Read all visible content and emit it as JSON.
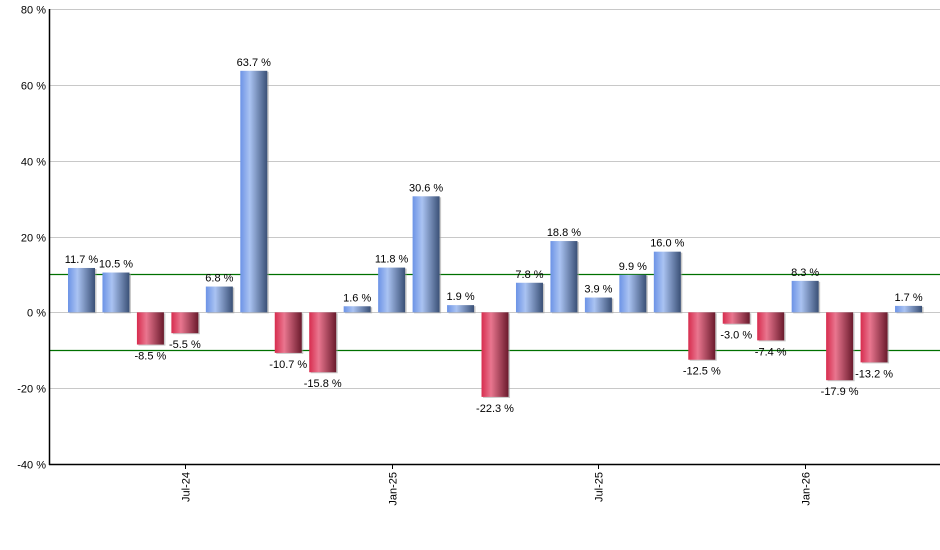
{
  "chart_data": {
    "type": "bar",
    "title": "",
    "xlabel": "",
    "ylabel": "",
    "ylim": [
      -40,
      80
    ],
    "y_ticks": [
      -40,
      -20,
      0,
      20,
      40,
      60,
      80
    ],
    "y_tick_labels": [
      "-40 %",
      "-20 %",
      "0 %",
      "20 %",
      "40 %",
      "60 %",
      "80 %"
    ],
    "grid": true,
    "reference_lines": [
      10,
      -10
    ],
    "reference_line_color": "#007000",
    "x_tick_labels": [
      {
        "label": "Jul-24",
        "bar_index": 3
      },
      {
        "label": "Jan-25",
        "bar_index": 9
      },
      {
        "label": "Jul-25",
        "bar_index": 15
      },
      {
        "label": "Jan-26",
        "bar_index": 21
      }
    ],
    "categories": [
      "Apr-24",
      "May-24",
      "Jun-24",
      "Jul-24",
      "Aug-24",
      "Sep-24",
      "Oct-24",
      "Nov-24",
      "Dec-24",
      "Jan-25",
      "Feb-25",
      "Mar-25",
      "Apr-25",
      "May-25",
      "Jun-25",
      "Jul-25",
      "Aug-25",
      "Sep-25",
      "Oct-25",
      "Nov-25",
      "Dec-25",
      "Jan-26",
      "Feb-26",
      "Mar-26",
      "Apr-26"
    ],
    "values": [
      11.7,
      10.5,
      -8.5,
      -5.5,
      6.8,
      63.7,
      -10.7,
      -15.8,
      1.6,
      11.8,
      30.6,
      1.9,
      -22.3,
      7.8,
      18.8,
      3.9,
      9.9,
      16.0,
      -12.5,
      -3.0,
      -7.4,
      8.3,
      -17.9,
      -13.2,
      1.7
    ],
    "labels": [
      "11.7 %",
      "10.5 %",
      "-8.5 %",
      "-5.5 %",
      "6.8 %",
      "63.7 %",
      "-10.7 %",
      "-15.8 %",
      "1.6 %",
      "11.8 %",
      "30.6 %",
      "1.9 %",
      "-22.3 %",
      "7.8 %",
      "18.8 %",
      "3.9 %",
      "9.9 %",
      "16.0 %",
      "-12.5 %",
      "-3.0 %",
      "-7.4 %",
      "8.3 %",
      "-17.9 %",
      "-13.2 %",
      "1.7 %"
    ],
    "colors": {
      "positive": "#7fa3ea",
      "negative": "#d8405e"
    },
    "legend": null
  }
}
